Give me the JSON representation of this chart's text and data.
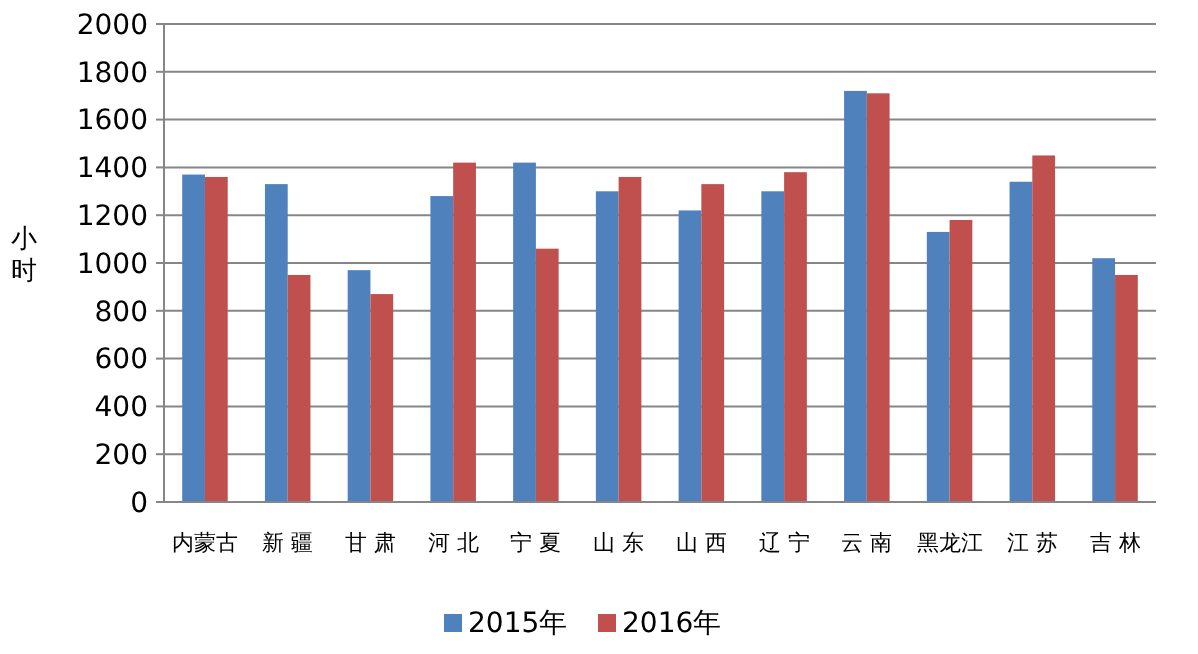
{
  "chart_data": {
    "type": "bar",
    "ylabel": "小时",
    "categories": [
      "内蒙古",
      "新 疆",
      "甘 肃",
      "河 北",
      "宁 夏",
      "山 东",
      "山 西",
      "辽 宁",
      "云 南",
      "黑龙江",
      "江 苏",
      "吉 林"
    ],
    "series": [
      {
        "name": "2015年",
        "color": "#4f81bd",
        "values": [
          1370,
          1330,
          970,
          1280,
          1420,
          1300,
          1220,
          1300,
          1720,
          1130,
          1340,
          1020
        ]
      },
      {
        "name": "2016年",
        "color": "#c0504d",
        "values": [
          1360,
          950,
          870,
          1420,
          1060,
          1360,
          1330,
          1380,
          1710,
          1180,
          1450,
          950
        ]
      }
    ],
    "ylim": [
      0,
      2000
    ],
    "yticks": [
      0,
      200,
      400,
      600,
      800,
      1000,
      1200,
      1400,
      1600,
      1800,
      2000
    ],
    "grid": "y",
    "legend": "bottom"
  }
}
